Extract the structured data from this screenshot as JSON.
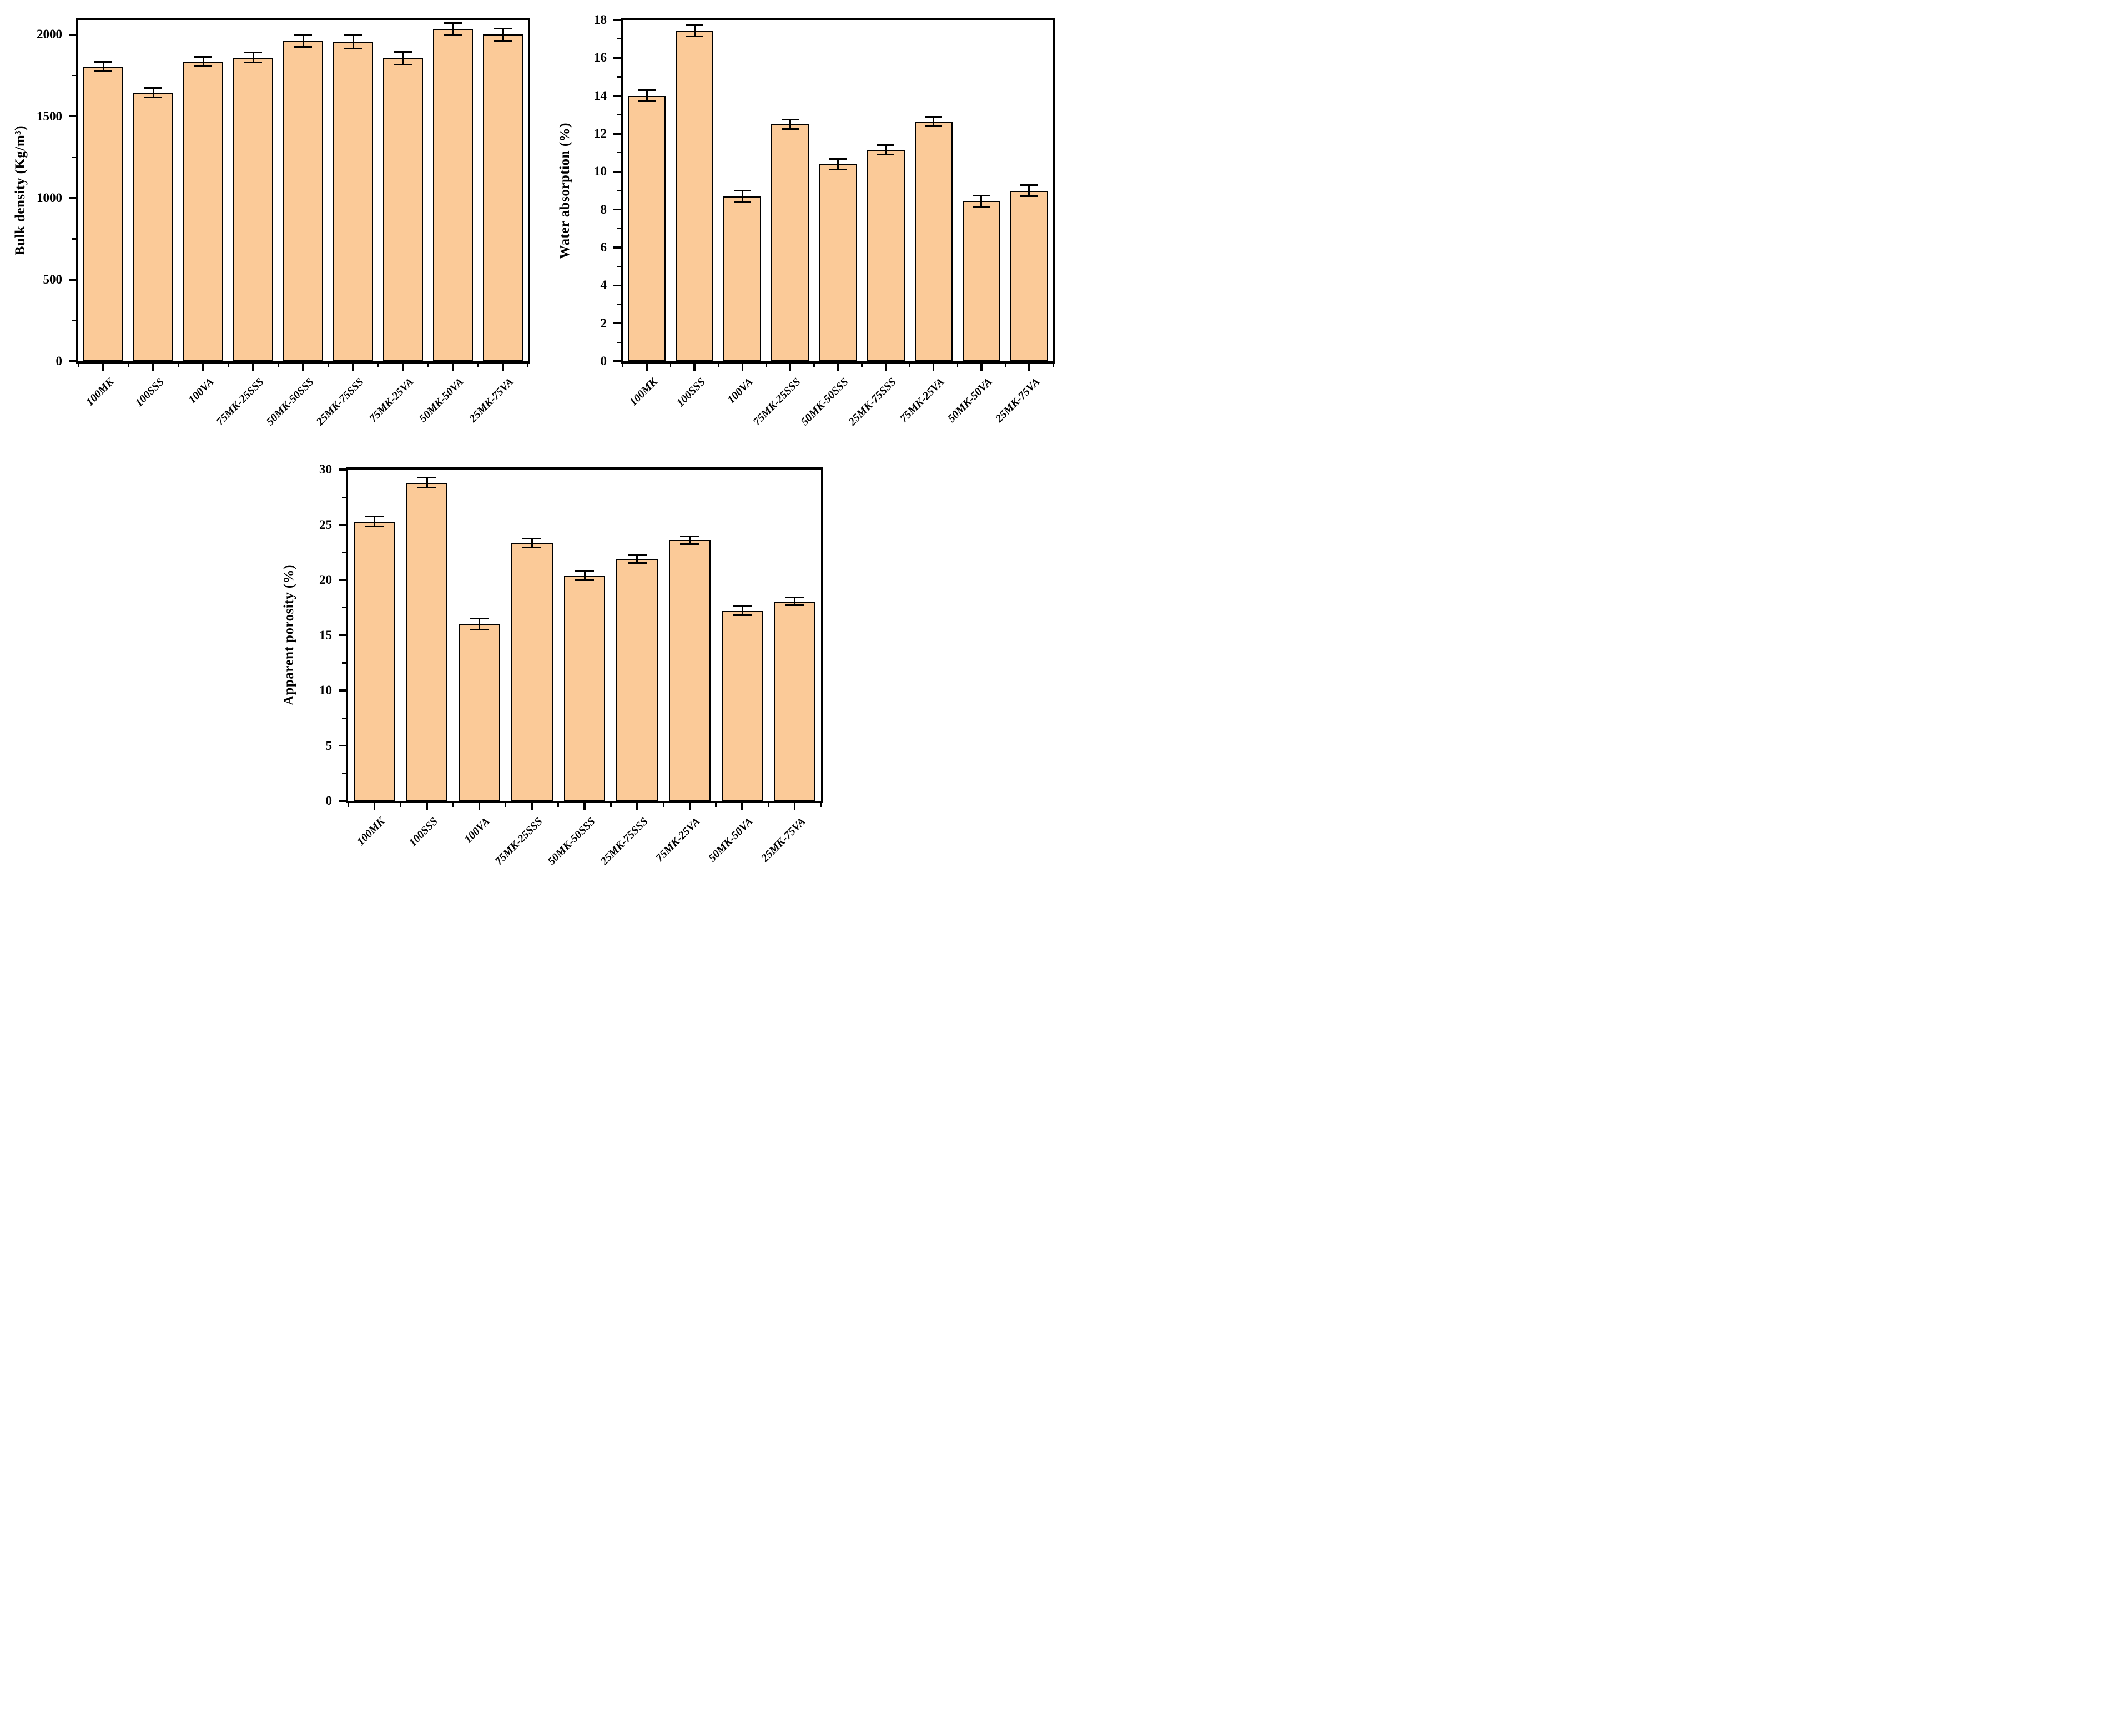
{
  "figure": {
    "background": "#FFFFFF",
    "description": "Three bar charts with error bars: bulk density, water absorption, apparent porosity of MK/SSS/VA geopolymer mixes"
  },
  "colors": {
    "bar_fill": "#FBCA98",
    "bar_border": "#000000",
    "axis": "#000000",
    "error_bar": "#000000"
  },
  "categories": [
    "100MK",
    "100SSS",
    "100VA",
    "75MK-25SSS",
    "50MK-50SSS",
    "25MK-75SSS",
    "75MK-25VA",
    "50MK-50VA",
    "25MK-75VA"
  ],
  "chart_data": [
    {
      "id": "bulk-density",
      "type": "bar",
      "title": "",
      "xlabel": "",
      "ylabel": "Bulk density (Kg/m³)",
      "ylim": [
        0,
        2090
      ],
      "grid": false,
      "legend": null,
      "yticks_major": {
        "values": [
          0,
          500,
          1000,
          1500,
          2000
        ],
        "labels": [
          "0",
          "500",
          "1000",
          "1500",
          "2000"
        ]
      },
      "yticks_minor": [
        250,
        750,
        1250,
        1750
      ],
      "categories": [
        "100MK",
        "100SSS",
        "100VA",
        "75MK-25SSS",
        "50MK-50SSS",
        "25MK-75SSS",
        "75MK-25VA",
        "50MK-50VA",
        "25MK-75VA"
      ],
      "values": [
        1805,
        1645,
        1835,
        1860,
        1960,
        1955,
        1855,
        2035,
        2000
      ],
      "errors": [
        30,
        30,
        28,
        30,
        35,
        40,
        40,
        38,
        38
      ]
    },
    {
      "id": "water-absorption",
      "type": "bar",
      "title": "",
      "xlabel": "",
      "ylabel": "Water absorption (%)",
      "ylim": [
        0,
        18
      ],
      "grid": false,
      "legend": null,
      "yticks_major": {
        "values": [
          0,
          2,
          4,
          6,
          8,
          10,
          12,
          14,
          16,
          18
        ],
        "labels": [
          "0",
          "2",
          "4",
          "6",
          "8",
          "10",
          "12",
          "14",
          "16",
          "18"
        ]
      },
      "yticks_minor": [
        1,
        3,
        5,
        7,
        9,
        11,
        13,
        15,
        17
      ],
      "categories": [
        "100MK",
        "100SSS",
        "100VA",
        "75MK-25SSS",
        "50MK-50SSS",
        "25MK-75SSS",
        "75MK-25VA",
        "50MK-50VA",
        "25MK-75VA"
      ],
      "values": [
        14.0,
        17.45,
        8.7,
        12.5,
        10.4,
        11.15,
        12.65,
        8.45,
        9.0
      ],
      "errors": [
        0.3,
        0.3,
        0.3,
        0.25,
        0.28,
        0.25,
        0.25,
        0.3,
        0.28
      ]
    },
    {
      "id": "apparent-porosity",
      "type": "bar",
      "title": "",
      "xlabel": "",
      "ylabel": "Apparent porosity (%)",
      "ylim": [
        0,
        30
      ],
      "grid": false,
      "legend": null,
      "yticks_major": {
        "values": [
          0,
          5,
          10,
          15,
          20,
          25,
          30
        ],
        "labels": [
          "0",
          "5",
          "10",
          "15",
          "20",
          "25",
          "30"
        ]
      },
      "yticks_minor": [
        2.5,
        7.5,
        12.5,
        17.5,
        22.5,
        27.5
      ],
      "categories": [
        "100MK",
        "100SSS",
        "100VA",
        "75MK-25SSS",
        "50MK-50SSS",
        "25MK-75SSS",
        "75MK-25VA",
        "50MK-50VA",
        "25MK-75VA"
      ],
      "values": [
        25.3,
        28.8,
        16.0,
        23.35,
        20.4,
        21.9,
        23.6,
        17.2,
        18.05
      ],
      "errors": [
        0.45,
        0.45,
        0.5,
        0.4,
        0.45,
        0.35,
        0.35,
        0.4,
        0.35
      ]
    }
  ]
}
